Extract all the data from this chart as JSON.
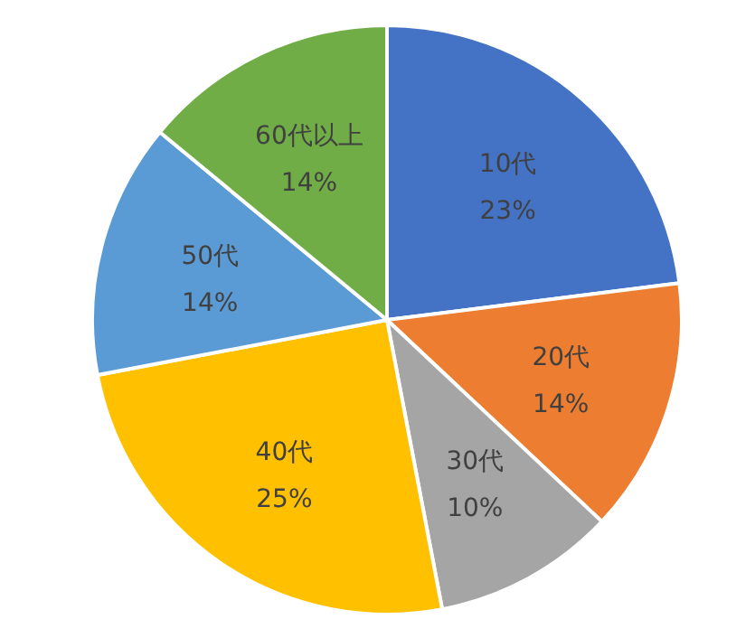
{
  "chart_data": {
    "type": "pie",
    "categories": [
      "10代",
      "20代",
      "30代",
      "40代",
      "50代",
      "60代以上"
    ],
    "values": [
      23,
      14,
      10,
      25,
      14,
      14
    ],
    "colors": [
      "#4472c4",
      "#ed7d31",
      "#a5a5a5",
      "#ffc000",
      "#5b9bd5",
      "#70ad47"
    ],
    "value_labels": [
      "23%",
      "14%",
      "10%",
      "25%",
      "14%",
      "14%"
    ],
    "legend": false
  }
}
